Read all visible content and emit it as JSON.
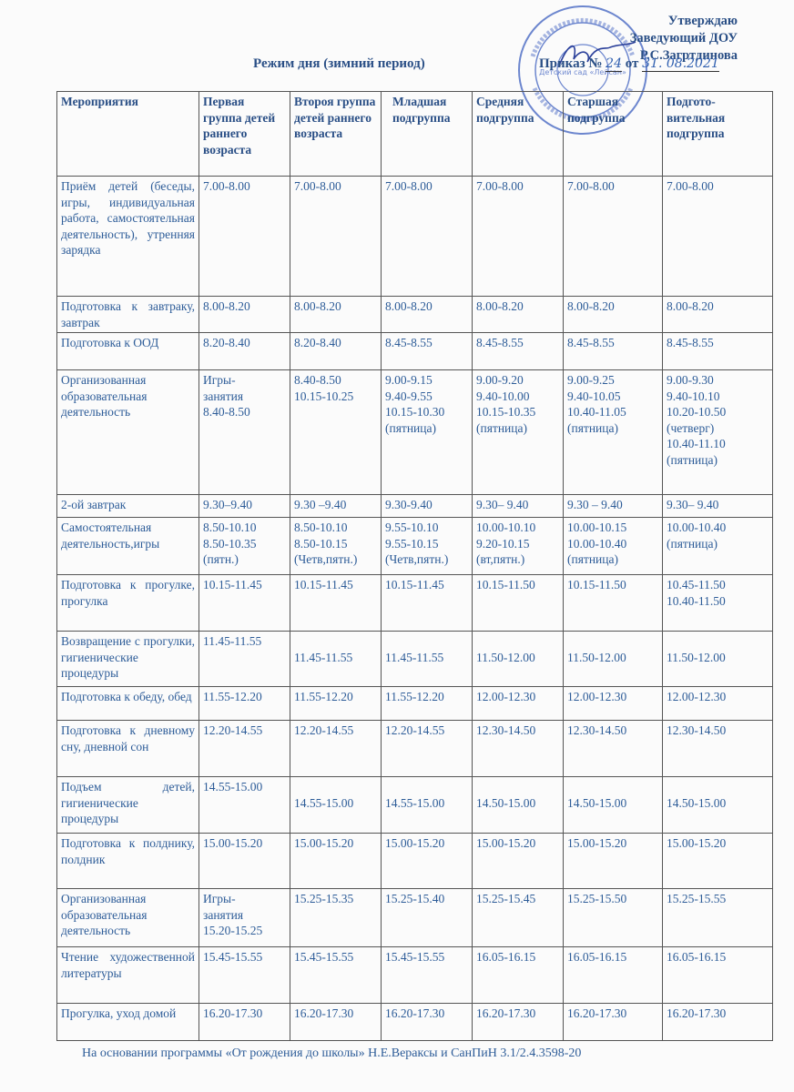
{
  "approval": {
    "line1": "Утверждаю",
    "line2": "Заведующий ДОУ",
    "line3": "Р.С.Загртдинова"
  },
  "title": "Режим дня (зимний период)",
  "order": {
    "label": "Приказ №",
    "number": "24",
    "from": "от",
    "date": "31. 08.2021"
  },
  "stamp_text": "Детский сад «Лейсан»",
  "table": {
    "headers": [
      "Мероприятия",
      "Первая группа детей раннего возраста",
      "Второя группа детей раннего возраста",
      "Младшая подгруппа",
      "Средняя подгруппа",
      "Старшая подгруппа",
      "Подгото-вительная подгруппа"
    ],
    "rows": [
      {
        "activity": "Приём детей (беседы, игры, индивидуальная работа, самостоятельная деятельность), утренняя зарядка",
        "cells": [
          "7.00-8.00",
          "7.00-8.00",
          "7.00-8.00",
          "7.00-8.00",
          "7.00-8.00",
          "7.00-8.00"
        ]
      },
      {
        "activity": "Подготовка к завтраку, завтрак",
        "cells": [
          "8.00-8.20",
          "8.00-8.20",
          "8.00-8.20",
          "8.00-8.20",
          "8.00-8.20",
          "8.00-8.20"
        ]
      },
      {
        "activity": "Подготовка к ООД",
        "cells": [
          "8.20-8.40",
          "8.20-8.40",
          "8.45-8.55",
          "8.45-8.55",
          "8.45-8.55",
          "8.45-8.55"
        ]
      },
      {
        "activity": "Организованная образовательная деятельность",
        "cells": [
          "Игры-\nзанятия\n8.40-8.50",
          "8.40-8.50\n10.15-10.25",
          "9.00-9.15\n9.40-9.55\n10.15-10.30\n(пятница)",
          "9.00-9.20\n9.40-10.00\n10.15-10.35\n(пятница)",
          "9.00-9.25\n9.40-10.05\n10.40-11.05\n(пятница)",
          "9.00-9.30\n9.40-10.10\n10.20-10.50\n(четверг)\n10.40-11.10\n(пятница)"
        ]
      },
      {
        "activity": "2-ой завтрак",
        "cells": [
          "9.30–9.40",
          "9.30 –9.40",
          "9.30-9.40",
          "9.30– 9.40",
          "9.30 – 9.40",
          "9.30– 9.40"
        ]
      },
      {
        "activity": "Самостоятельная деятельность,игры",
        "cells": [
          "8.50-10.10\n8.50-10.35\n(пятн.)",
          "8.50-10.10\n8.50-10.15\n(Четв,пятн.)",
          "9.55-10.10\n9.55-10.15\n(Четв,пятн.)",
          "10.00-10.10\n9.20-10.15\n(вт,пятн.)",
          "10.00-10.15\n10.00-10.40\n(пятница)",
          "10.00-10.40\n(пятница)"
        ]
      },
      {
        "activity": "Подготовка к прогулке, прогулка",
        "cells": [
          "10.15-11.45",
          "10.15-11.45",
          "10.15-11.45",
          "10.15-11.50",
          "10.15-11.50",
          "10.45-11.50\n10.40-11.50"
        ]
      },
      {
        "activity": "Возвращение с прогулки, гигиенические процедуры",
        "cells": [
          "11.45-11.55",
          "\n11.45-11.55",
          "\n11.45-11.55",
          "\n11.50-12.00",
          "\n11.50-12.00",
          "\n11.50-12.00"
        ]
      },
      {
        "activity": "Подготовка к обеду, обед",
        "cells": [
          "11.55-12.20",
          "11.55-12.20",
          "11.55-12.20",
          "12.00-12.30",
          "12.00-12.30",
          "12.00-12.30"
        ]
      },
      {
        "activity": "Подготовка к дневному сну, дневной сон",
        "cells": [
          "12.20-14.55",
          "12.20-14.55",
          "12.20-14.55",
          "12.30-14.50",
          "12.30-14.50",
          "12.30-14.50"
        ]
      },
      {
        "activity": "Подъем детей, гигиенические процедуры",
        "cells": [
          "14.55-15.00",
          "\n14.55-15.00",
          "\n14.55-15.00",
          "\n14.50-15.00",
          "\n14.50-15.00",
          "\n14.50-15.00"
        ]
      },
      {
        "activity": "Подготовка к полднику, полдник",
        "cells": [
          "15.00-15.20",
          "15.00-15.20",
          "15.00-15.20",
          "15.00-15.20",
          "15.00-15.20",
          "15.00-15.20"
        ]
      },
      {
        "activity": "Организованная образовательная деятельность",
        "cells": [
          "Игры-\nзанятия\n15.20-15.25",
          "15.25-15.35",
          "15.25-15.40",
          "15.25-15.45",
          "15.25-15.50",
          "15.25-15.55"
        ]
      },
      {
        "activity": "Чтение художественной литературы",
        "cells": [
          "15.45-15.55",
          "15.45-15.55",
          "15.45-15.55",
          "16.05-16.15",
          "16.05-16.15",
          "16.05-16.15"
        ]
      },
      {
        "activity": "Прогулка, уход домой",
        "cells": [
          "16.20-17.30",
          "16.20-17.30",
          "16.20-17.30",
          "16.20-17.30",
          "16.20-17.30",
          "16.20-17.30"
        ]
      }
    ]
  },
  "footer": "На основании программы «От рождения до школы» Н.Е.Вераксы и   СанПиН 3.1/2.4.3598-20"
}
